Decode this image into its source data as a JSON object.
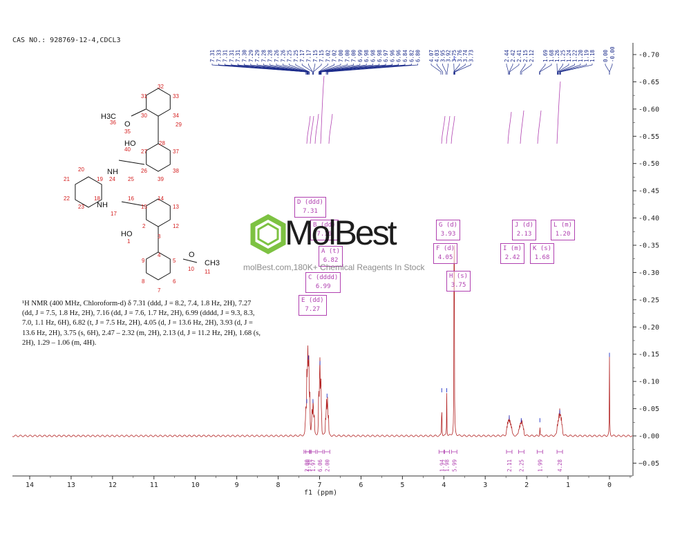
{
  "header": {
    "cas": "CAS NO.: 928769-12-4,CDCL3"
  },
  "description": "¹H NMR (400 MHz, Chloroform-d) δ 7.31 (ddd, J = 8.2, 7.4, 1.8 Hz, 2H), 7.27 (dd, J = 7.5, 1.8 Hz, 2H), 7.16 (dd, J = 7.6, 1.7 Hz, 2H), 6.99 (dddd, J = 9.3, 8.3, 7.0, 1.1 Hz, 6H), 6.82 (t, J = 7.5 Hz, 2H), 4.05 (d, J = 13.6 Hz, 2H), 3.93 (d, J = 13.6 Hz, 2H), 3.75 (s, 6H), 2.47 – 2.32 (m, 2H), 2.13 (d, J = 11.2 Hz, 2H), 1.68 (s, 2H), 1.29 – 1.06 (m, 4H).",
  "watermark": {
    "brand": "MolBest",
    "tagline": "molBest.com,180K+ Chemical Reagents In Stock"
  },
  "colors": {
    "spectrum": "#b22222",
    "annotation": "#b040b0",
    "peaklabel": "#1a2a8a",
    "axis": "#333333"
  },
  "chart_data": {
    "type": "line",
    "title": "",
    "xlabel": "f1 (ppm)",
    "ylabel": "",
    "xlim": [
      14.5,
      -0.5
    ],
    "ylim": [
      -0.07,
      0.72
    ],
    "x_ticks": [
      14,
      13,
      12,
      11,
      10,
      9,
      8,
      7,
      6,
      5,
      4,
      3,
      2,
      1,
      0
    ],
    "y_ticks": [
      "0.70",
      "0.65",
      "0.60",
      "0.55",
      "0.50",
      "0.45",
      "0.40",
      "0.35",
      "0.30",
      "0.25",
      "0.20",
      "0.15",
      "0.10",
      "0.05",
      "0.00",
      "-0.05"
    ],
    "peaks": [
      {
        "ppm": 7.31,
        "height": 0.06
      },
      {
        "ppm": 7.27,
        "height": 0.14
      },
      {
        "ppm": 7.16,
        "height": 0.06
      },
      {
        "ppm": 6.99,
        "height": 0.13
      },
      {
        "ppm": 6.82,
        "height": 0.07
      },
      {
        "ppm": 4.05,
        "height": 0.08
      },
      {
        "ppm": 3.93,
        "height": 0.08
      },
      {
        "ppm": 3.75,
        "height": 0.69
      },
      {
        "ppm": 2.42,
        "height": 0.03
      },
      {
        "ppm": 2.13,
        "height": 0.025
      },
      {
        "ppm": 1.68,
        "height": 0.025
      },
      {
        "ppm": 1.2,
        "height": 0.04
      },
      {
        "ppm": 0.0,
        "height": 0.145
      }
    ],
    "peak_labels": [
      "7.31",
      "7.33",
      "7.31",
      "7.31",
      "7.31",
      "7.30",
      "7.29",
      "7.29",
      "7.28",
      "7.28",
      "7.26",
      "7.26",
      "7.25",
      "7.25",
      "7.17",
      "7.17",
      "7.15",
      "7.15",
      "7.02",
      "7.02",
      "7.00",
      "7.00",
      "7.00",
      "6.99",
      "6.98",
      "6.98",
      "6.98",
      "6.97",
      "6.96",
      "6.96",
      "6.84",
      "6.82",
      "6.80",
      "4.07",
      "4.03",
      "3.95",
      "3.92",
      "3.75",
      "3.76",
      "3.74",
      "3.73",
      "2.44",
      "2.42",
      "2.41",
      "2.15",
      "2.12",
      "1.69",
      "1.68",
      "1.26",
      "1.25",
      "1.24",
      "1.22",
      "1.20",
      "1.19",
      "1.18",
      "0.00",
      "-0.00"
    ],
    "multiplets": [
      {
        "label": "D (ddd)",
        "shift": "7.31"
      },
      {
        "label": "E (dd)",
        "shift": "7.27"
      },
      {
        "label": "B (dd)",
        "shift": "7.16"
      },
      {
        "label": "A (t)",
        "shift": "6.82"
      },
      {
        "label": "C (dddd)",
        "shift": "6.99"
      },
      {
        "label": "G (d)",
        "shift": "3.93"
      },
      {
        "label": "F (d)",
        "shift": "4.05"
      },
      {
        "label": "H (s)",
        "shift": "3.75"
      },
      {
        "label": "J (d)",
        "shift": "2.13"
      },
      {
        "label": "I (m)",
        "shift": "2.42"
      },
      {
        "label": "K (s)",
        "shift": "1.68"
      },
      {
        "label": "L (m)",
        "shift": "1.20"
      }
    ],
    "integrals": [
      {
        "ppm": 7.31,
        "value": "2.00"
      },
      {
        "ppm": 7.27,
        "value": "1.90"
      },
      {
        "ppm": 7.16,
        "value": "1.97"
      },
      {
        "ppm": 6.99,
        "value": "6.06"
      },
      {
        "ppm": 6.82,
        "value": "2.00"
      },
      {
        "ppm": 4.05,
        "value": "1.94"
      },
      {
        "ppm": 3.93,
        "value": "1.98"
      },
      {
        "ppm": 3.75,
        "value": "5.99"
      },
      {
        "ppm": 2.42,
        "value": "2.11"
      },
      {
        "ppm": 2.13,
        "value": "2.25"
      },
      {
        "ppm": 1.68,
        "value": "1.99"
      },
      {
        "ppm": 1.2,
        "value": "4.28"
      }
    ]
  },
  "structure_labels": {
    "methyl_top": "H3C",
    "oxygen_top": "O",
    "oh_top": "HO",
    "nh_top": "NH",
    "nh_bottom": "NH",
    "oh_bottom": "HO",
    "oxygen_bottom": "O",
    "methyl_bottom": "CH3",
    "numbers": [
      "31",
      "32",
      "33",
      "30",
      "34",
      "36",
      "35",
      "29",
      "28",
      "40",
      "27",
      "37",
      "26",
      "38",
      "24",
      "25",
      "39",
      "20",
      "19",
      "21",
      "16",
      "22",
      "18",
      "14",
      "23",
      "15",
      "13",
      "17",
      "2",
      "12",
      "1",
      "3",
      "4",
      "9",
      "5",
      "10",
      "11",
      "8",
      "6",
      "7"
    ]
  }
}
